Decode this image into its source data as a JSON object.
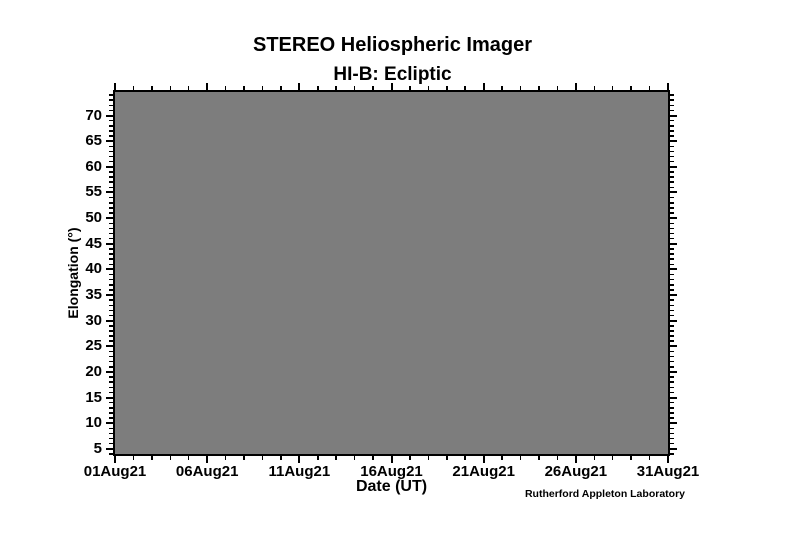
{
  "chart_data": {
    "type": "heatmap",
    "title": "STEREO Heliospheric Imager",
    "subtitle": "HI-B: Ecliptic",
    "xlabel": "Date (UT)",
    "ylabel": "Elongation (°)",
    "credit": "Rutherford Appleton Laboratory",
    "x_axis": {
      "range_days": [
        0,
        30
      ],
      "major_ticks": [
        {
          "day": 0,
          "label": "01Aug21"
        },
        {
          "day": 5,
          "label": "06Aug21"
        },
        {
          "day": 10,
          "label": "11Aug21"
        },
        {
          "day": 15,
          "label": "16Aug21"
        },
        {
          "day": 20,
          "label": "21Aug21"
        },
        {
          "day": 25,
          "label": "26Aug21"
        },
        {
          "day": 30,
          "label": "31Aug21"
        }
      ],
      "minor_tick_interval_days": 1
    },
    "y_axis": {
      "range": [
        4,
        74.6
      ],
      "major_ticks": [
        5,
        10,
        15,
        20,
        25,
        30,
        35,
        40,
        45,
        50,
        55,
        60,
        65,
        70
      ],
      "minor_tick_interval": 1
    },
    "series": [],
    "no_data": true,
    "colors": {
      "plot_area_fill": "#7d7d7d",
      "axis": "#000000",
      "background": "#ffffff",
      "text": "#000000"
    }
  }
}
